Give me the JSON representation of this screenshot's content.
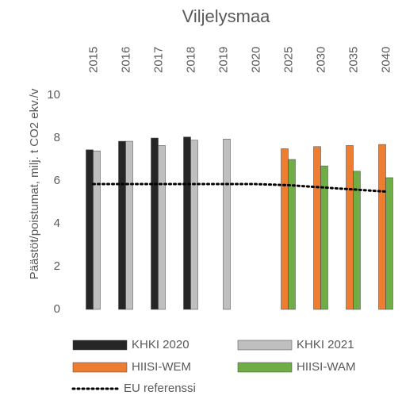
{
  "chart_data": {
    "type": "bar",
    "title": "Viljelysmaa",
    "y_label": "Päästöt/poistumat, milj. t CO2 ekv./v",
    "categories": [
      "2015",
      "2016",
      "2017",
      "2018",
      "2019",
      "2020",
      "2025",
      "2030",
      "2035",
      "2040"
    ],
    "series": [
      {
        "name": "KHKI 2020",
        "color": "#262626",
        "values": [
          7.45,
          7.85,
          8.0,
          8.05,
          null,
          null,
          null,
          null,
          null,
          null
        ]
      },
      {
        "name": "KHKI 2021",
        "color": "#bfbfbf",
        "values": [
          7.4,
          7.85,
          7.65,
          7.9,
          7.95,
          null,
          null,
          null,
          null,
          null
        ]
      },
      {
        "name": "HIISI-WEM",
        "color": "#ed7d31",
        "values": [
          null,
          null,
          null,
          null,
          null,
          null,
          7.5,
          7.6,
          7.65,
          7.7
        ]
      },
      {
        "name": "HIISI-WAM",
        "color": "#70ad47",
        "values": [
          null,
          null,
          null,
          null,
          null,
          null,
          7.0,
          6.7,
          6.45,
          6.15
        ]
      },
      {
        "name": "EU referenssi",
        "color": "#000000",
        "type": "line",
        "values": [
          5.85,
          5.85,
          5.85,
          5.85,
          5.85,
          5.85,
          5.8,
          5.7,
          5.6,
          5.5
        ]
      }
    ],
    "ylim": [
      0,
      10
    ],
    "yticks": [
      0,
      2,
      4,
      6,
      8,
      10
    ],
    "grid": false
  }
}
